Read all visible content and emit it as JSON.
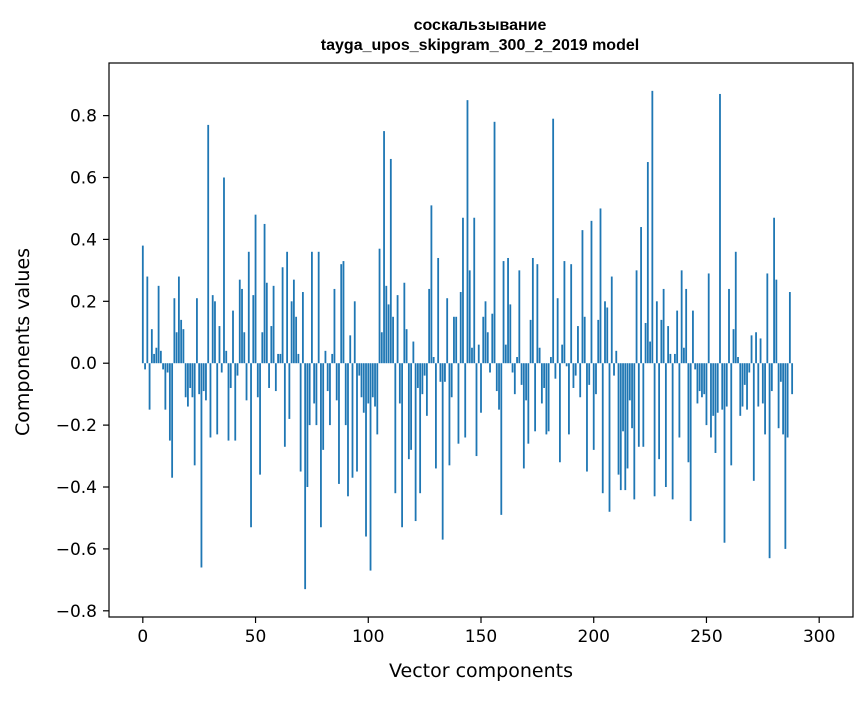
{
  "chart_data": {
    "type": "bar",
    "title_line1": "соскальзывание",
    "title_line2": "tayga_upos_skipgram_300_2_2019 model",
    "xlabel": "Vector components",
    "ylabel": "Components values",
    "xlim": [
      -15,
      315
    ],
    "ylim": [
      -0.82,
      0.97
    ],
    "x_ticks": [
      0,
      50,
      100,
      150,
      200,
      250,
      300
    ],
    "y_ticks": [
      -0.8,
      -0.6,
      -0.4,
      -0.2,
      0.0,
      0.2,
      0.4,
      0.6,
      0.8
    ],
    "x_tick_labels": [
      "0",
      "50",
      "100",
      "150",
      "200",
      "250",
      "300"
    ],
    "y_tick_labels": [
      "−0.8",
      "−0.6",
      "−0.4",
      "−0.2",
      "0.0",
      "0.2",
      "0.4",
      "0.6",
      "0.8"
    ],
    "bar_color": "#1f77b4",
    "grid": false,
    "values": [
      0.38,
      -0.02,
      0.28,
      -0.15,
      0.11,
      0.03,
      0.05,
      0.25,
      0.04,
      -0.02,
      -0.15,
      -0.03,
      -0.25,
      -0.37,
      0.21,
      0.1,
      0.28,
      0.14,
      0.11,
      -0.11,
      -0.14,
      -0.08,
      -0.11,
      -0.33,
      0.21,
      -0.1,
      -0.66,
      -0.09,
      -0.12,
      0.77,
      -0.24,
      0.22,
      0.2,
      -0.23,
      0.12,
      -0.03,
      0.6,
      0.04,
      -0.25,
      -0.08,
      0.17,
      -0.25,
      -0.04,
      0.27,
      0.24,
      0.1,
      -0.12,
      0.36,
      -0.53,
      0.22,
      0.48,
      -0.11,
      -0.36,
      0.1,
      0.45,
      0.26,
      -0.08,
      0.12,
      0.25,
      -0.09,
      0.03,
      0.03,
      0.31,
      -0.27,
      0.36,
      -0.18,
      0.2,
      0.27,
      0.15,
      0.03,
      -0.35,
      0.23,
      -0.73,
      -0.4,
      -0.2,
      0.36,
      -0.13,
      -0.2,
      0.36,
      -0.53,
      -0.28,
      0.04,
      -0.09,
      -0.2,
      0.03,
      0.24,
      -0.12,
      -0.39,
      0.32,
      0.33,
      -0.2,
      -0.43,
      0.09,
      -0.37,
      0.2,
      -0.35,
      -0.04,
      -0.11,
      -0.16,
      -0.56,
      -0.13,
      -0.67,
      -0.11,
      -0.14,
      -0.23,
      0.37,
      0.1,
      0.75,
      0.25,
      0.19,
      0.66,
      0.15,
      -0.42,
      0.22,
      -0.13,
      -0.53,
      0.26,
      0.11,
      -0.31,
      -0.28,
      0.07,
      -0.51,
      -0.08,
      -0.42,
      -0.1,
      -0.04,
      -0.17,
      0.24,
      0.51,
      0.02,
      -0.34,
      0.34,
      -0.06,
      -0.57,
      -0.06,
      0.21,
      -0.33,
      -0.11,
      0.15,
      0.15,
      -0.26,
      0.23,
      0.47,
      -0.24,
      0.85,
      0.3,
      0.05,
      0.47,
      -0.3,
      0.06,
      -0.16,
      0.15,
      0.2,
      0.1,
      -0.03,
      0.16,
      0.78,
      -0.09,
      -0.15,
      -0.49,
      0.33,
      0.06,
      0.34,
      0.19,
      -0.03,
      -0.1,
      0.02,
      0.3,
      -0.07,
      -0.34,
      -0.12,
      -0.26,
      0.14,
      0.34,
      -0.22,
      0.32,
      0.05,
      -0.13,
      -0.08,
      -0.23,
      -0.22,
      0.02,
      0.79,
      -0.05,
      0.21,
      -0.32,
      0.06,
      0.33,
      -0.01,
      -0.23,
      0.32,
      -0.08,
      -0.04,
      0.12,
      -0.11,
      0.43,
      0.15,
      -0.35,
      -0.07,
      0.46,
      -0.28,
      -0.1,
      0.14,
      0.5,
      -0.42,
      0.2,
      0.18,
      -0.48,
      0.28,
      -0.04,
      0.04,
      -0.36,
      -0.41,
      -0.22,
      -0.41,
      -0.34,
      -0.12,
      -0.21,
      -0.44,
      0.3,
      -0.27,
      0.44,
      -0.27,
      0.13,
      0.65,
      0.07,
      0.88,
      -0.43,
      0.2,
      -0.31,
      0.14,
      0.24,
      -0.4,
      0.12,
      0.03,
      -0.44,
      0.03,
      0.17,
      -0.24,
      0.3,
      0.05,
      0.24,
      -0.32,
      -0.51,
      0.17,
      -0.02,
      -0.13,
      -0.09,
      -0.11,
      -0.1,
      -0.2,
      0.29,
      -0.24,
      -0.17,
      -0.29,
      -0.16,
      0.87,
      -0.15,
      -0.58,
      -0.14,
      0.24,
      -0.33,
      0.11,
      0.36,
      0.02,
      -0.17,
      -0.14,
      -0.07,
      -0.15,
      -0.03,
      0.09,
      -0.38,
      0.1,
      -0.14,
      0.08,
      -0.13,
      -0.23,
      0.29,
      -0.63,
      -0.09,
      0.47,
      0.27,
      -0.21,
      -0.06,
      -0.23,
      -0.6,
      -0.24,
      0.23,
      -0.1
    ]
  }
}
